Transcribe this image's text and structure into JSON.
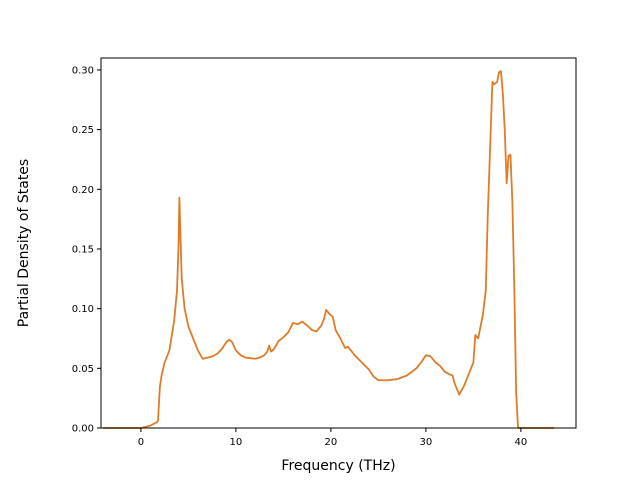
{
  "chart_data": {
    "type": "line",
    "xlabel": "Frequency (THz)",
    "ylabel": "Partial Density of States",
    "xlim": [
      -4.2,
      45.8
    ],
    "ylim": [
      0.0,
      0.31
    ],
    "xticks": [
      0,
      10,
      20,
      30,
      40
    ],
    "yticks": [
      0.0,
      0.05,
      0.1,
      0.15,
      0.2,
      0.25,
      0.3
    ],
    "xtick_labels": [
      "0",
      "10",
      "20",
      "30",
      "40"
    ],
    "ytick_labels": [
      "0.00",
      "0.05",
      "0.10",
      "0.15",
      "0.20",
      "0.25",
      "0.30"
    ],
    "grid": false,
    "series": [
      {
        "color": "#e07b27",
        "x": [
          -4.0,
          0.0,
          1.0,
          1.7,
          1.8,
          2.0,
          2.2,
          2.5,
          3.0,
          3.5,
          3.8,
          3.95,
          4.05,
          4.15,
          4.3,
          4.6,
          5.0,
          5.5,
          6.0,
          6.5,
          7.0,
          7.5,
          8.0,
          8.5,
          9.0,
          9.3,
          9.6,
          10.0,
          10.5,
          11.0,
          12.0,
          12.5,
          13.0,
          13.3,
          13.5,
          13.7,
          14.0,
          14.5,
          15.0,
          15.5,
          16.0,
          16.5,
          17.0,
          17.5,
          18.0,
          18.5,
          19.0,
          19.3,
          19.5,
          19.8,
          20.2,
          20.5,
          21.0,
          21.5,
          21.8,
          22.0,
          22.5,
          23.0,
          24.0,
          24.5,
          25.0,
          26.0,
          27.0,
          28.0,
          28.5,
          29.0,
          29.5,
          30.0,
          30.5,
          31.0,
          31.5,
          32.0,
          32.5,
          32.8,
          33.0,
          33.5,
          34.0,
          34.5,
          35.0,
          35.2,
          35.5,
          36.0,
          36.3,
          36.5,
          37.0,
          37.2,
          37.5,
          37.7,
          37.9,
          38.1,
          38.3,
          38.5,
          38.7,
          38.9,
          39.1,
          39.3,
          39.5,
          39.7,
          39.75,
          40.0,
          42.0,
          43.5
        ],
        "y": [
          0.0,
          0.0,
          0.002,
          0.005,
          0.006,
          0.035,
          0.045,
          0.055,
          0.065,
          0.09,
          0.115,
          0.15,
          0.193,
          0.165,
          0.125,
          0.1,
          0.085,
          0.075,
          0.065,
          0.058,
          0.059,
          0.06,
          0.062,
          0.066,
          0.072,
          0.074,
          0.072,
          0.065,
          0.061,
          0.059,
          0.058,
          0.059,
          0.061,
          0.064,
          0.069,
          0.064,
          0.066,
          0.073,
          0.076,
          0.08,
          0.088,
          0.087,
          0.089,
          0.086,
          0.082,
          0.081,
          0.086,
          0.092,
          0.099,
          0.096,
          0.093,
          0.082,
          0.075,
          0.067,
          0.068,
          0.066,
          0.061,
          0.057,
          0.049,
          0.043,
          0.04,
          0.04,
          0.041,
          0.044,
          0.047,
          0.05,
          0.055,
          0.061,
          0.06,
          0.055,
          0.052,
          0.047,
          0.045,
          0.044,
          0.038,
          0.028,
          0.035,
          0.045,
          0.055,
          0.078,
          0.075,
          0.095,
          0.115,
          0.175,
          0.29,
          0.288,
          0.29,
          0.298,
          0.299,
          0.28,
          0.25,
          0.205,
          0.228,
          0.229,
          0.19,
          0.12,
          0.03,
          0.0,
          0.0,
          0.0,
          0.0,
          0.0
        ]
      }
    ]
  }
}
